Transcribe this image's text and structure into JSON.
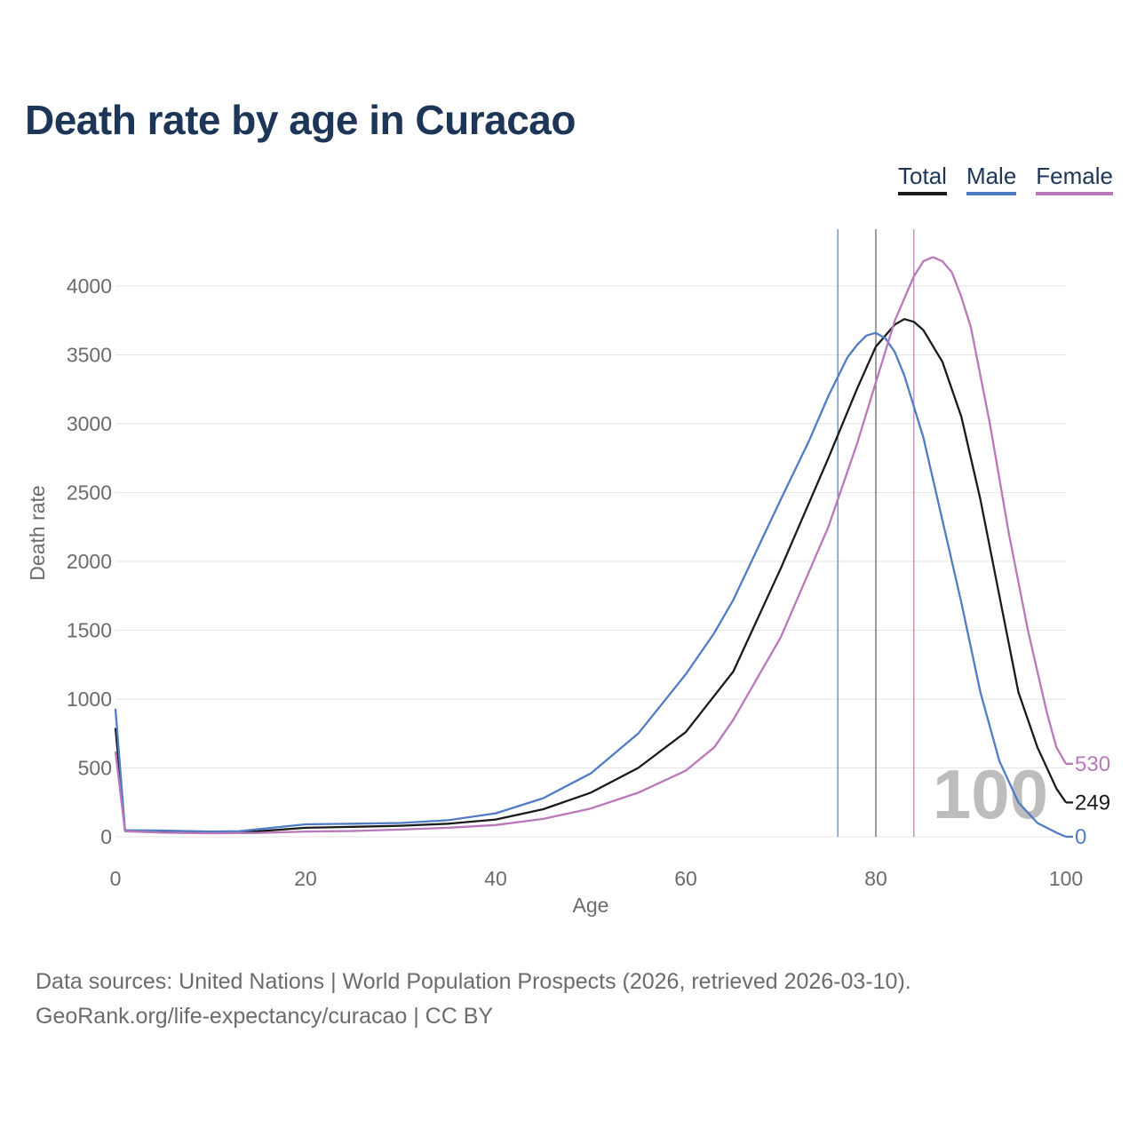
{
  "title": "Death rate by age in Curacao",
  "legend": [
    {
      "label": "Total",
      "color": "#1a1a1a"
    },
    {
      "label": "Male",
      "color": "#4f7cc4"
    },
    {
      "label": "Female",
      "color": "#b978b9"
    }
  ],
  "footer": {
    "line1": "Data sources: United Nations | World Population Prospects (2026, retrieved 2026-03-10).",
    "line2": "GeoRank.org/life-expectancy/curacao | CC BY"
  },
  "chart_data": {
    "type": "line",
    "xlabel": "Age",
    "ylabel": "Death rate",
    "xlim": [
      0,
      100
    ],
    "ylim": [
      0,
      4400
    ],
    "xticks": [
      0,
      20,
      40,
      60,
      80,
      100
    ],
    "yticks": [
      0,
      500,
      1000,
      1500,
      2000,
      2500,
      3000,
      3500,
      4000
    ],
    "grid": true,
    "highlight_label": "100",
    "vertical_lines": [
      {
        "series": "Male",
        "x": 76
      },
      {
        "series": "Total",
        "x": 80
      },
      {
        "series": "Female",
        "x": 84
      }
    ],
    "series": [
      {
        "name": "Total",
        "color": "#1a1a1a",
        "end_label": "249",
        "points": [
          [
            0,
            790
          ],
          [
            1,
            45
          ],
          [
            5,
            38
          ],
          [
            10,
            30
          ],
          [
            15,
            40
          ],
          [
            20,
            65
          ],
          [
            25,
            72
          ],
          [
            30,
            80
          ],
          [
            35,
            95
          ],
          [
            40,
            125
          ],
          [
            45,
            200
          ],
          [
            50,
            320
          ],
          [
            55,
            500
          ],
          [
            60,
            760
          ],
          [
            65,
            1200
          ],
          [
            70,
            1950
          ],
          [
            75,
            2750
          ],
          [
            78,
            3250
          ],
          [
            80,
            3560
          ],
          [
            82,
            3720
          ],
          [
            83,
            3760
          ],
          [
            84,
            3740
          ],
          [
            85,
            3680
          ],
          [
            87,
            3450
          ],
          [
            89,
            3050
          ],
          [
            91,
            2450
          ],
          [
            93,
            1750
          ],
          [
            95,
            1050
          ],
          [
            97,
            650
          ],
          [
            99,
            350
          ],
          [
            100,
            249
          ]
        ]
      },
      {
        "name": "Male",
        "color": "#4f7cc4",
        "end_label": "0",
        "points": [
          [
            0,
            930
          ],
          [
            1,
            48
          ],
          [
            5,
            45
          ],
          [
            10,
            38
          ],
          [
            13,
            40
          ],
          [
            15,
            55
          ],
          [
            20,
            90
          ],
          [
            25,
            95
          ],
          [
            30,
            100
          ],
          [
            35,
            120
          ],
          [
            40,
            170
          ],
          [
            45,
            280
          ],
          [
            50,
            460
          ],
          [
            55,
            750
          ],
          [
            60,
            1180
          ],
          [
            63,
            1480
          ],
          [
            65,
            1720
          ],
          [
            70,
            2450
          ],
          [
            73,
            2880
          ],
          [
            75,
            3200
          ],
          [
            77,
            3480
          ],
          [
            78,
            3570
          ],
          [
            79,
            3640
          ],
          [
            80,
            3660
          ],
          [
            81,
            3620
          ],
          [
            82,
            3520
          ],
          [
            83,
            3350
          ],
          [
            85,
            2900
          ],
          [
            87,
            2300
          ],
          [
            89,
            1700
          ],
          [
            91,
            1050
          ],
          [
            93,
            550
          ],
          [
            95,
            250
          ],
          [
            97,
            100
          ],
          [
            99,
            30
          ],
          [
            100,
            0
          ]
        ]
      },
      {
        "name": "Female",
        "color": "#b978b9",
        "end_label": "530",
        "points": [
          [
            0,
            620
          ],
          [
            1,
            40
          ],
          [
            5,
            30
          ],
          [
            10,
            25
          ],
          [
            15,
            28
          ],
          [
            20,
            38
          ],
          [
            25,
            42
          ],
          [
            30,
            52
          ],
          [
            35,
            65
          ],
          [
            40,
            85
          ],
          [
            45,
            130
          ],
          [
            50,
            205
          ],
          [
            55,
            320
          ],
          [
            60,
            480
          ],
          [
            63,
            650
          ],
          [
            65,
            850
          ],
          [
            70,
            1450
          ],
          [
            75,
            2250
          ],
          [
            78,
            2850
          ],
          [
            80,
            3300
          ],
          [
            82,
            3750
          ],
          [
            84,
            4070
          ],
          [
            85,
            4180
          ],
          [
            86,
            4210
          ],
          [
            87,
            4180
          ],
          [
            88,
            4100
          ],
          [
            89,
            3920
          ],
          [
            90,
            3700
          ],
          [
            92,
            3000
          ],
          [
            94,
            2200
          ],
          [
            96,
            1500
          ],
          [
            98,
            900
          ],
          [
            99,
            650
          ],
          [
            100,
            530
          ]
        ]
      }
    ]
  }
}
